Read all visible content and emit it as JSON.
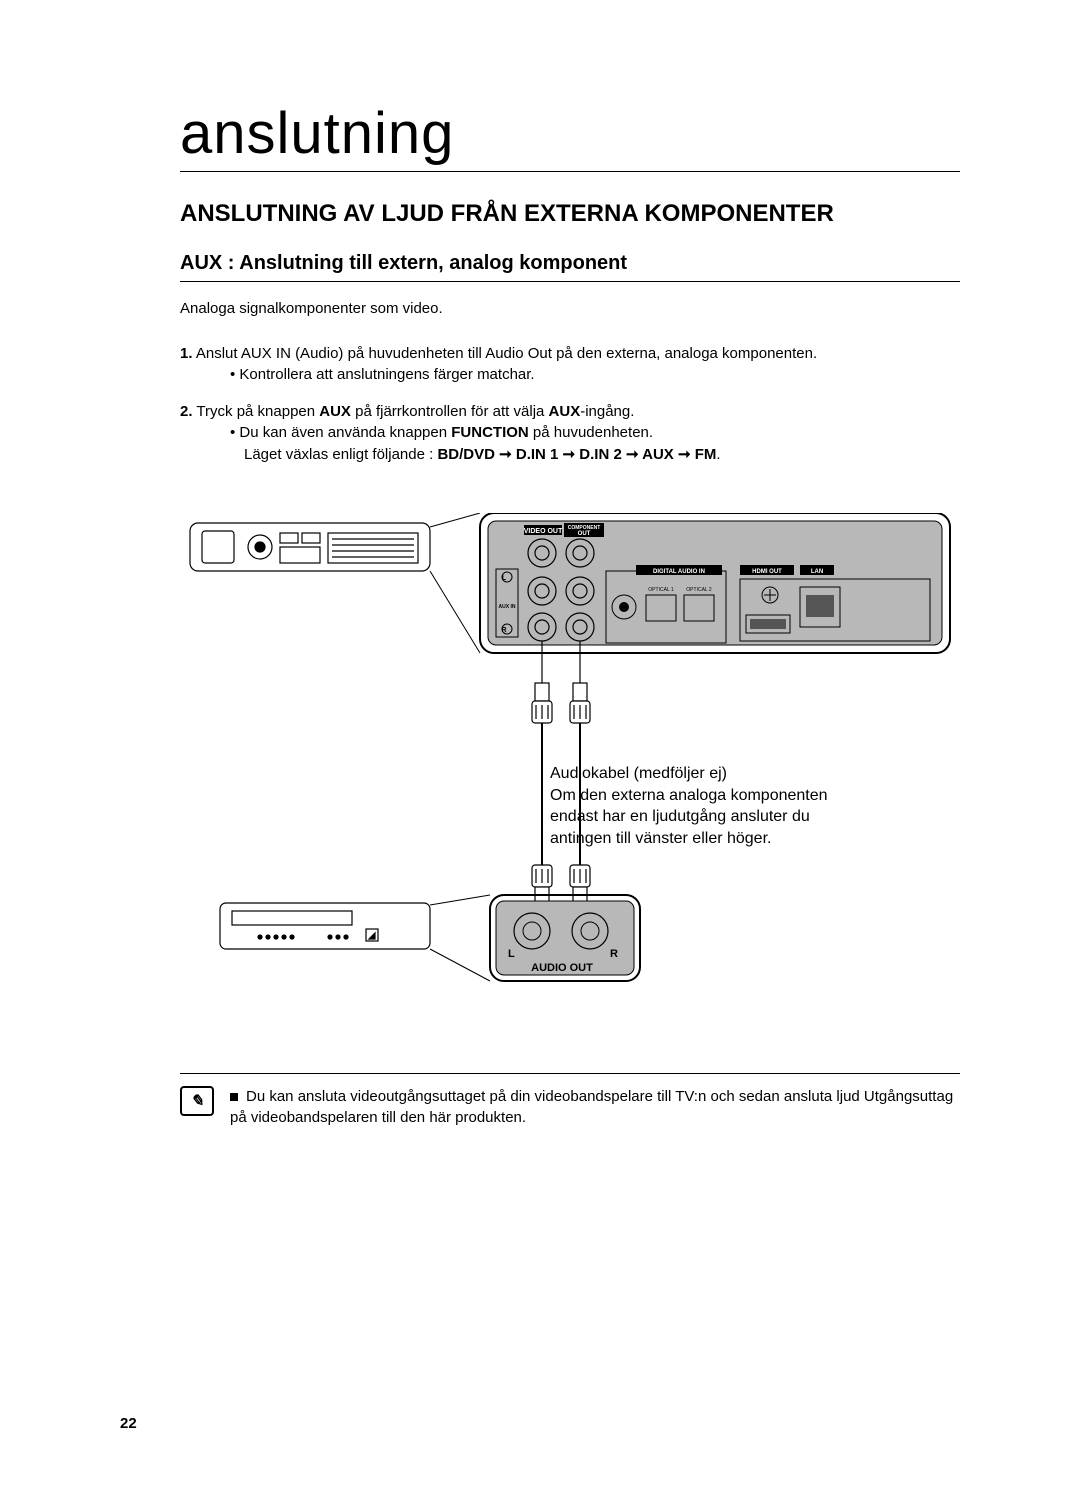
{
  "pageNumber": "22",
  "chapterTitle": "anslutning",
  "sectionTitle": "ANSLUTNING AV LJUD FRÅN EXTERNA KOMPONENTER",
  "subTitle": "AUX : Anslutning till extern, analog komponent",
  "intro": "Analoga signalkomponenter som video.",
  "steps": [
    {
      "num": "1.",
      "text": "Anslut AUX IN (Audio) på huvudenheten till Audio Out på den externa, analoga komponenten.",
      "bullets": [
        "Kontrollera att anslutningens färger matchar."
      ]
    },
    {
      "num": "2.",
      "textParts": [
        {
          "t": "Tryck på knappen "
        },
        {
          "t": "AUX",
          "bold": true
        },
        {
          "t": " på fjärrkontrollen för att välja "
        },
        {
          "t": "AUX",
          "bold": true
        },
        {
          "t": "-ingång."
        }
      ],
      "bulletsRich": [
        [
          {
            "t": "Du kan även använda knappen "
          },
          {
            "t": "FUNCTION",
            "bold": true
          },
          {
            "t": " på huvudenheten."
          }
        ],
        [
          {
            "t": "Läget växlas enligt följande : "
          },
          {
            "t": "BD/DVD ➞ D.IN 1 ➞ D.IN 2 ➞ AUX ➞ FM",
            "bold": true
          },
          {
            "t": "."
          }
        ]
      ]
    }
  ],
  "diagram": {
    "mainUnitPanel": {
      "labels": {
        "videoOut": "VIDEO OUT",
        "componentOut": "COMPONENT OUT",
        "digitalAudioIn": "DIGITAL AUDIO IN",
        "hdmiOut": "HDMI OUT",
        "lan": "LAN",
        "optical1": "OPTICAL 1",
        "optical2": "OPTICAL 2",
        "auxIn": "AUX IN",
        "left": "L",
        "right": "R"
      }
    },
    "externalPanel": {
      "audioOut": "AUDIO OUT",
      "left": "L",
      "right": "R"
    },
    "callout": "Audiokabel (medföljer ej)\nOm den externa analoga komponenten endast har en ljudutgång ansluter du antingen till vänster eller höger."
  },
  "note": {
    "iconGlyph": "✎",
    "text": "Du kan ansluta videoutgångsuttaget på din videobandspelare till TV:n och sedan ansluta ljud Utgångsuttag på videobandspelaren till den här produkten."
  },
  "colors": {
    "text": "#000000",
    "bg": "#ffffff",
    "panelFill": "#b8b8b8",
    "panelDark": "#555555",
    "lineGray": "#999999"
  }
}
